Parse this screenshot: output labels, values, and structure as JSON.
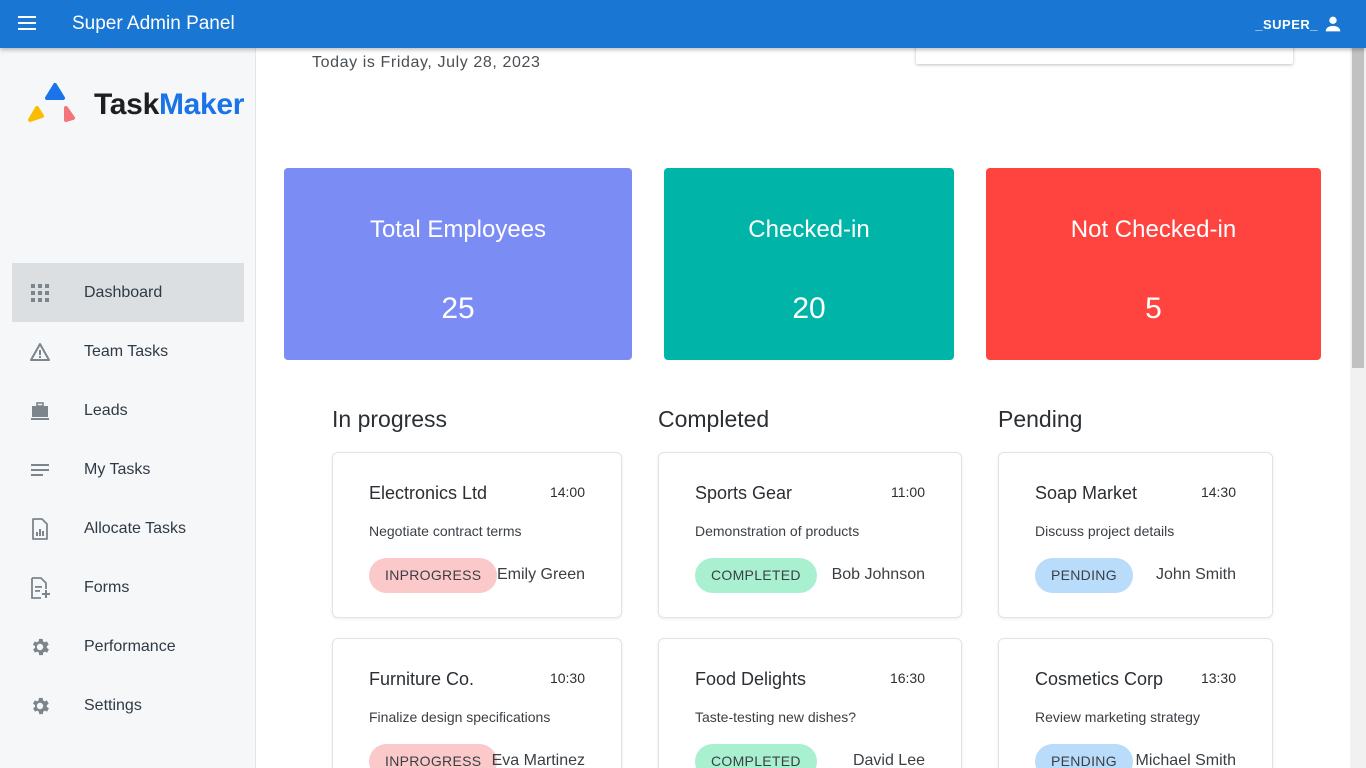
{
  "appbar": {
    "title": "Super Admin Panel",
    "user": "_SUPER_"
  },
  "logo": {
    "part1": "Task",
    "part2": "Maker"
  },
  "sidebar": {
    "items": [
      {
        "label": "Dashboard",
        "icon": "grid-icon"
      },
      {
        "label": "Team Tasks",
        "icon": "warning-icon"
      },
      {
        "label": "Leads",
        "icon": "briefcase-icon"
      },
      {
        "label": "My Tasks",
        "icon": "list-icon"
      },
      {
        "label": "Allocate Tasks",
        "icon": "report-icon"
      },
      {
        "label": "Forms",
        "icon": "note-add-icon"
      },
      {
        "label": "Performance",
        "icon": "gear-icon"
      },
      {
        "label": "Settings",
        "icon": "gear-icon"
      }
    ]
  },
  "main": {
    "date_text": "Today is  Friday, July 28, 2023",
    "stats": [
      {
        "title": "Total Employees",
        "value": "25",
        "color": "#7b8cf5"
      },
      {
        "title": "Checked-in",
        "value": "20",
        "color": "#00b5a8"
      },
      {
        "title": "Not Checked-in",
        "value": "5",
        "color": "#ff4440"
      }
    ],
    "columns": [
      {
        "title": "In progress",
        "cards": [
          {
            "name": "Electronics Ltd",
            "time": "14:00",
            "desc": "Negotiate contract terms",
            "status": "INPROGRESS",
            "person": "Emily Green"
          },
          {
            "name": "Furniture Co.",
            "time": "10:30",
            "desc": "Finalize design specifications",
            "status": "INPROGRESS",
            "person": "Eva Martinez"
          }
        ]
      },
      {
        "title": "Completed",
        "cards": [
          {
            "name": "Sports Gear",
            "time": "11:00",
            "desc": "Demonstration of products",
            "status": "COMPLETED",
            "person": "Bob Johnson"
          },
          {
            "name": "Food Delights",
            "time": "16:30",
            "desc": "Taste-testing new dishes?",
            "status": "COMPLETED",
            "person": "David Lee"
          }
        ]
      },
      {
        "title": "Pending",
        "cards": [
          {
            "name": "Soap Market",
            "time": "14:30",
            "desc": "Discuss project details",
            "status": "PENDING",
            "person": "John Smith"
          },
          {
            "name": "Cosmetics Corp",
            "time": "13:30",
            "desc": "Review marketing strategy",
            "status": "PENDING",
            "person": "Michael Smith"
          }
        ]
      }
    ],
    "status_colors": {
      "INPROGRESS": "#fbc9c9",
      "COMPLETED": "#a9f0d1",
      "PENDING": "#b9dcfb"
    }
  }
}
